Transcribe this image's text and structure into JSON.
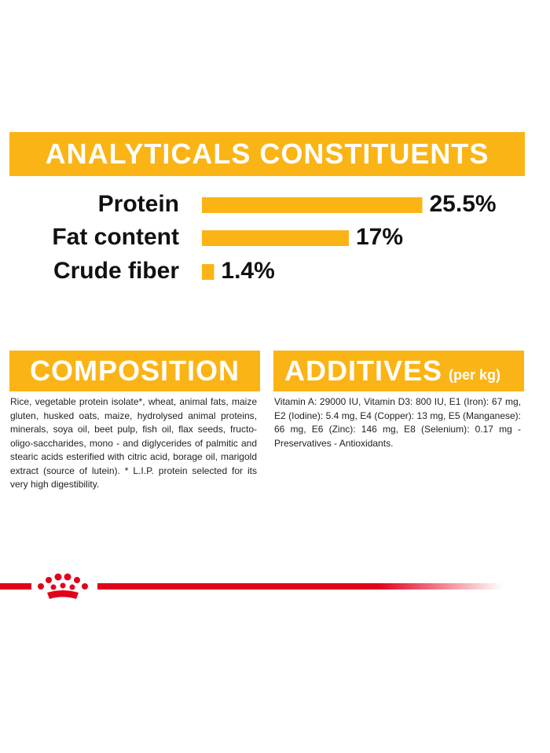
{
  "analyticals": {
    "title": "ANALYTICALS CONSTITUENTS",
    "categories": [
      "Protein",
      "Fat content",
      "Crude fiber"
    ],
    "values": [
      25.5,
      17,
      1.4
    ],
    "value_labels": [
      "25.5%",
      "17%",
      "1.4%"
    ],
    "color": "#fbb415"
  },
  "composition": {
    "title": "COMPOSITION",
    "text": "Rice, vegetable protein isolate*, wheat, animal fats, maize gluten, husked oats, maize, hydrolysed animal proteins, minerals, soya oil, beet pulp, fish oil, flax seeds, fructo-oligo-saccharides, mono - and diglycerides of palmitic and stearic acids esterified with citric acid, borage oil, marigold extract (source of lutein). * L.I.P. protein selected for its very high digestibility."
  },
  "additives": {
    "title": "ADDITIVES",
    "subtitle": "(per kg)",
    "text": "Vitamin A: 29000 IU, Vitamin D3: 800 IU, E1 (Iron): 67 mg, E2 (Iodine): 5.4 mg, E4 (Copper): 13 mg, E5 (Manganese): 66 mg, E6 (Zinc): 146 mg, E8 (Selenium): 0.17 mg - Preservatives - Antioxidants."
  }
}
